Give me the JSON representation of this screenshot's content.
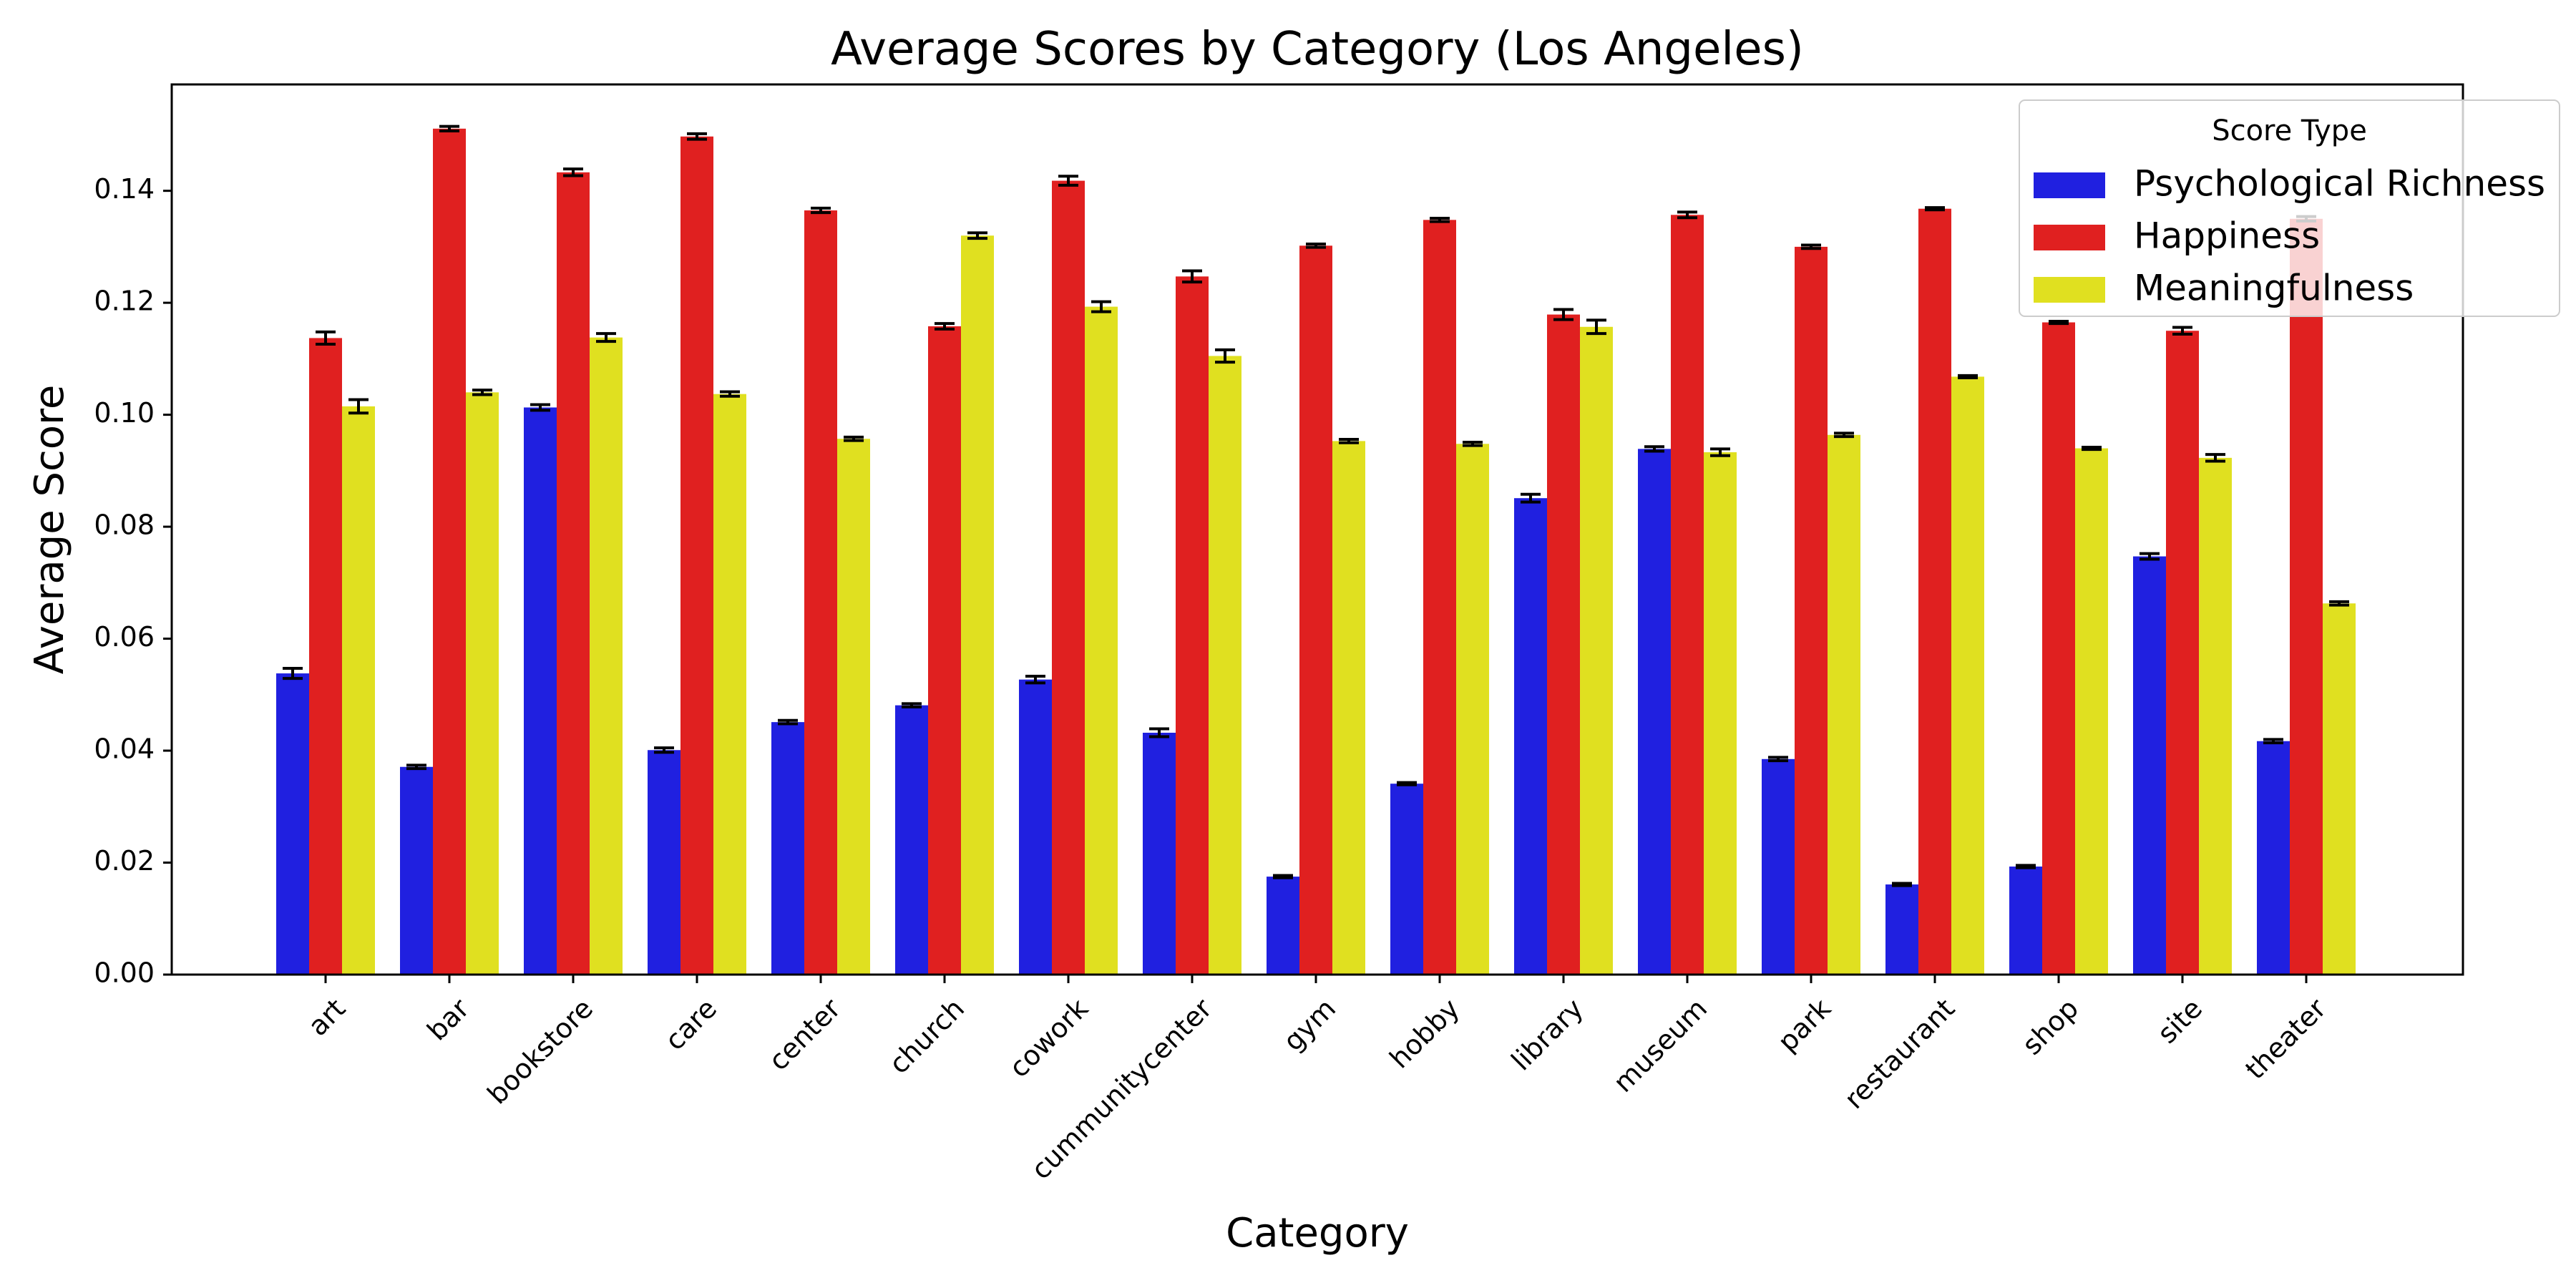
{
  "chart_data": {
    "type": "bar",
    "title": "Average Scores by Category (Los Angeles)",
    "xlabel": "Category",
    "ylabel": "Average Score",
    "ylim": [
      0,
      0.159
    ],
    "yticks": [
      "0.00",
      "0.02",
      "0.04",
      "0.06",
      "0.08",
      "0.10",
      "0.12",
      "0.14"
    ],
    "ytick_values": [
      0,
      0.02,
      0.04,
      0.06,
      0.08,
      0.1,
      0.12,
      0.14
    ],
    "grid": false,
    "legend": {
      "title": "Score Type",
      "placement": "top-right"
    },
    "categories": [
      "art",
      "bar",
      "bookstore",
      "care",
      "center",
      "church",
      "cowork",
      "cummunitycenter",
      "gym",
      "hobby",
      "library",
      "museum",
      "park",
      "restaurant",
      "shop",
      "site",
      "theater"
    ],
    "series": [
      {
        "name": "Psychological Richness",
        "color": "#2020e0",
        "values": [
          0.0538,
          0.0371,
          0.1013,
          0.0401,
          0.0451,
          0.0481,
          0.0527,
          0.0432,
          0.0175,
          0.0341,
          0.0851,
          0.0939,
          0.0385,
          0.0161,
          0.0193,
          0.0747,
          0.0417
        ],
        "errors": [
          0.0009,
          0.0003,
          0.0005,
          0.0004,
          0.0003,
          0.0003,
          0.0006,
          0.0007,
          0.0002,
          0.0002,
          0.0007,
          0.0004,
          0.0003,
          0.0002,
          0.0002,
          0.0005,
          0.0003
        ]
      },
      {
        "name": "Happiness",
        "color": "#e02020",
        "values": [
          0.1137,
          0.1511,
          0.1433,
          0.1497,
          0.1365,
          0.1158,
          0.1418,
          0.1247,
          0.1302,
          0.1348,
          0.1179,
          0.1357,
          0.13,
          0.1368,
          0.1165,
          0.115,
          0.135
        ],
        "errors": [
          0.0011,
          0.0004,
          0.0006,
          0.0005,
          0.0004,
          0.0005,
          0.0008,
          0.001,
          0.0003,
          0.0003,
          0.0009,
          0.0005,
          0.0003,
          0.0002,
          0.0002,
          0.0006,
          0.0004
        ]
      },
      {
        "name": "Meaningfulness",
        "color": "#e0e020",
        "values": [
          0.1015,
          0.104,
          0.1138,
          0.1037,
          0.0957,
          0.132,
          0.1193,
          0.1105,
          0.0953,
          0.0948,
          0.1157,
          0.0933,
          0.0964,
          0.1068,
          0.094,
          0.0923,
          0.0663
        ],
        "errors": [
          0.0012,
          0.0004,
          0.0007,
          0.0004,
          0.0003,
          0.0005,
          0.0009,
          0.0011,
          0.0003,
          0.0003,
          0.0012,
          0.0006,
          0.0003,
          0.0002,
          0.0002,
          0.0006,
          0.0003
        ]
      }
    ]
  }
}
